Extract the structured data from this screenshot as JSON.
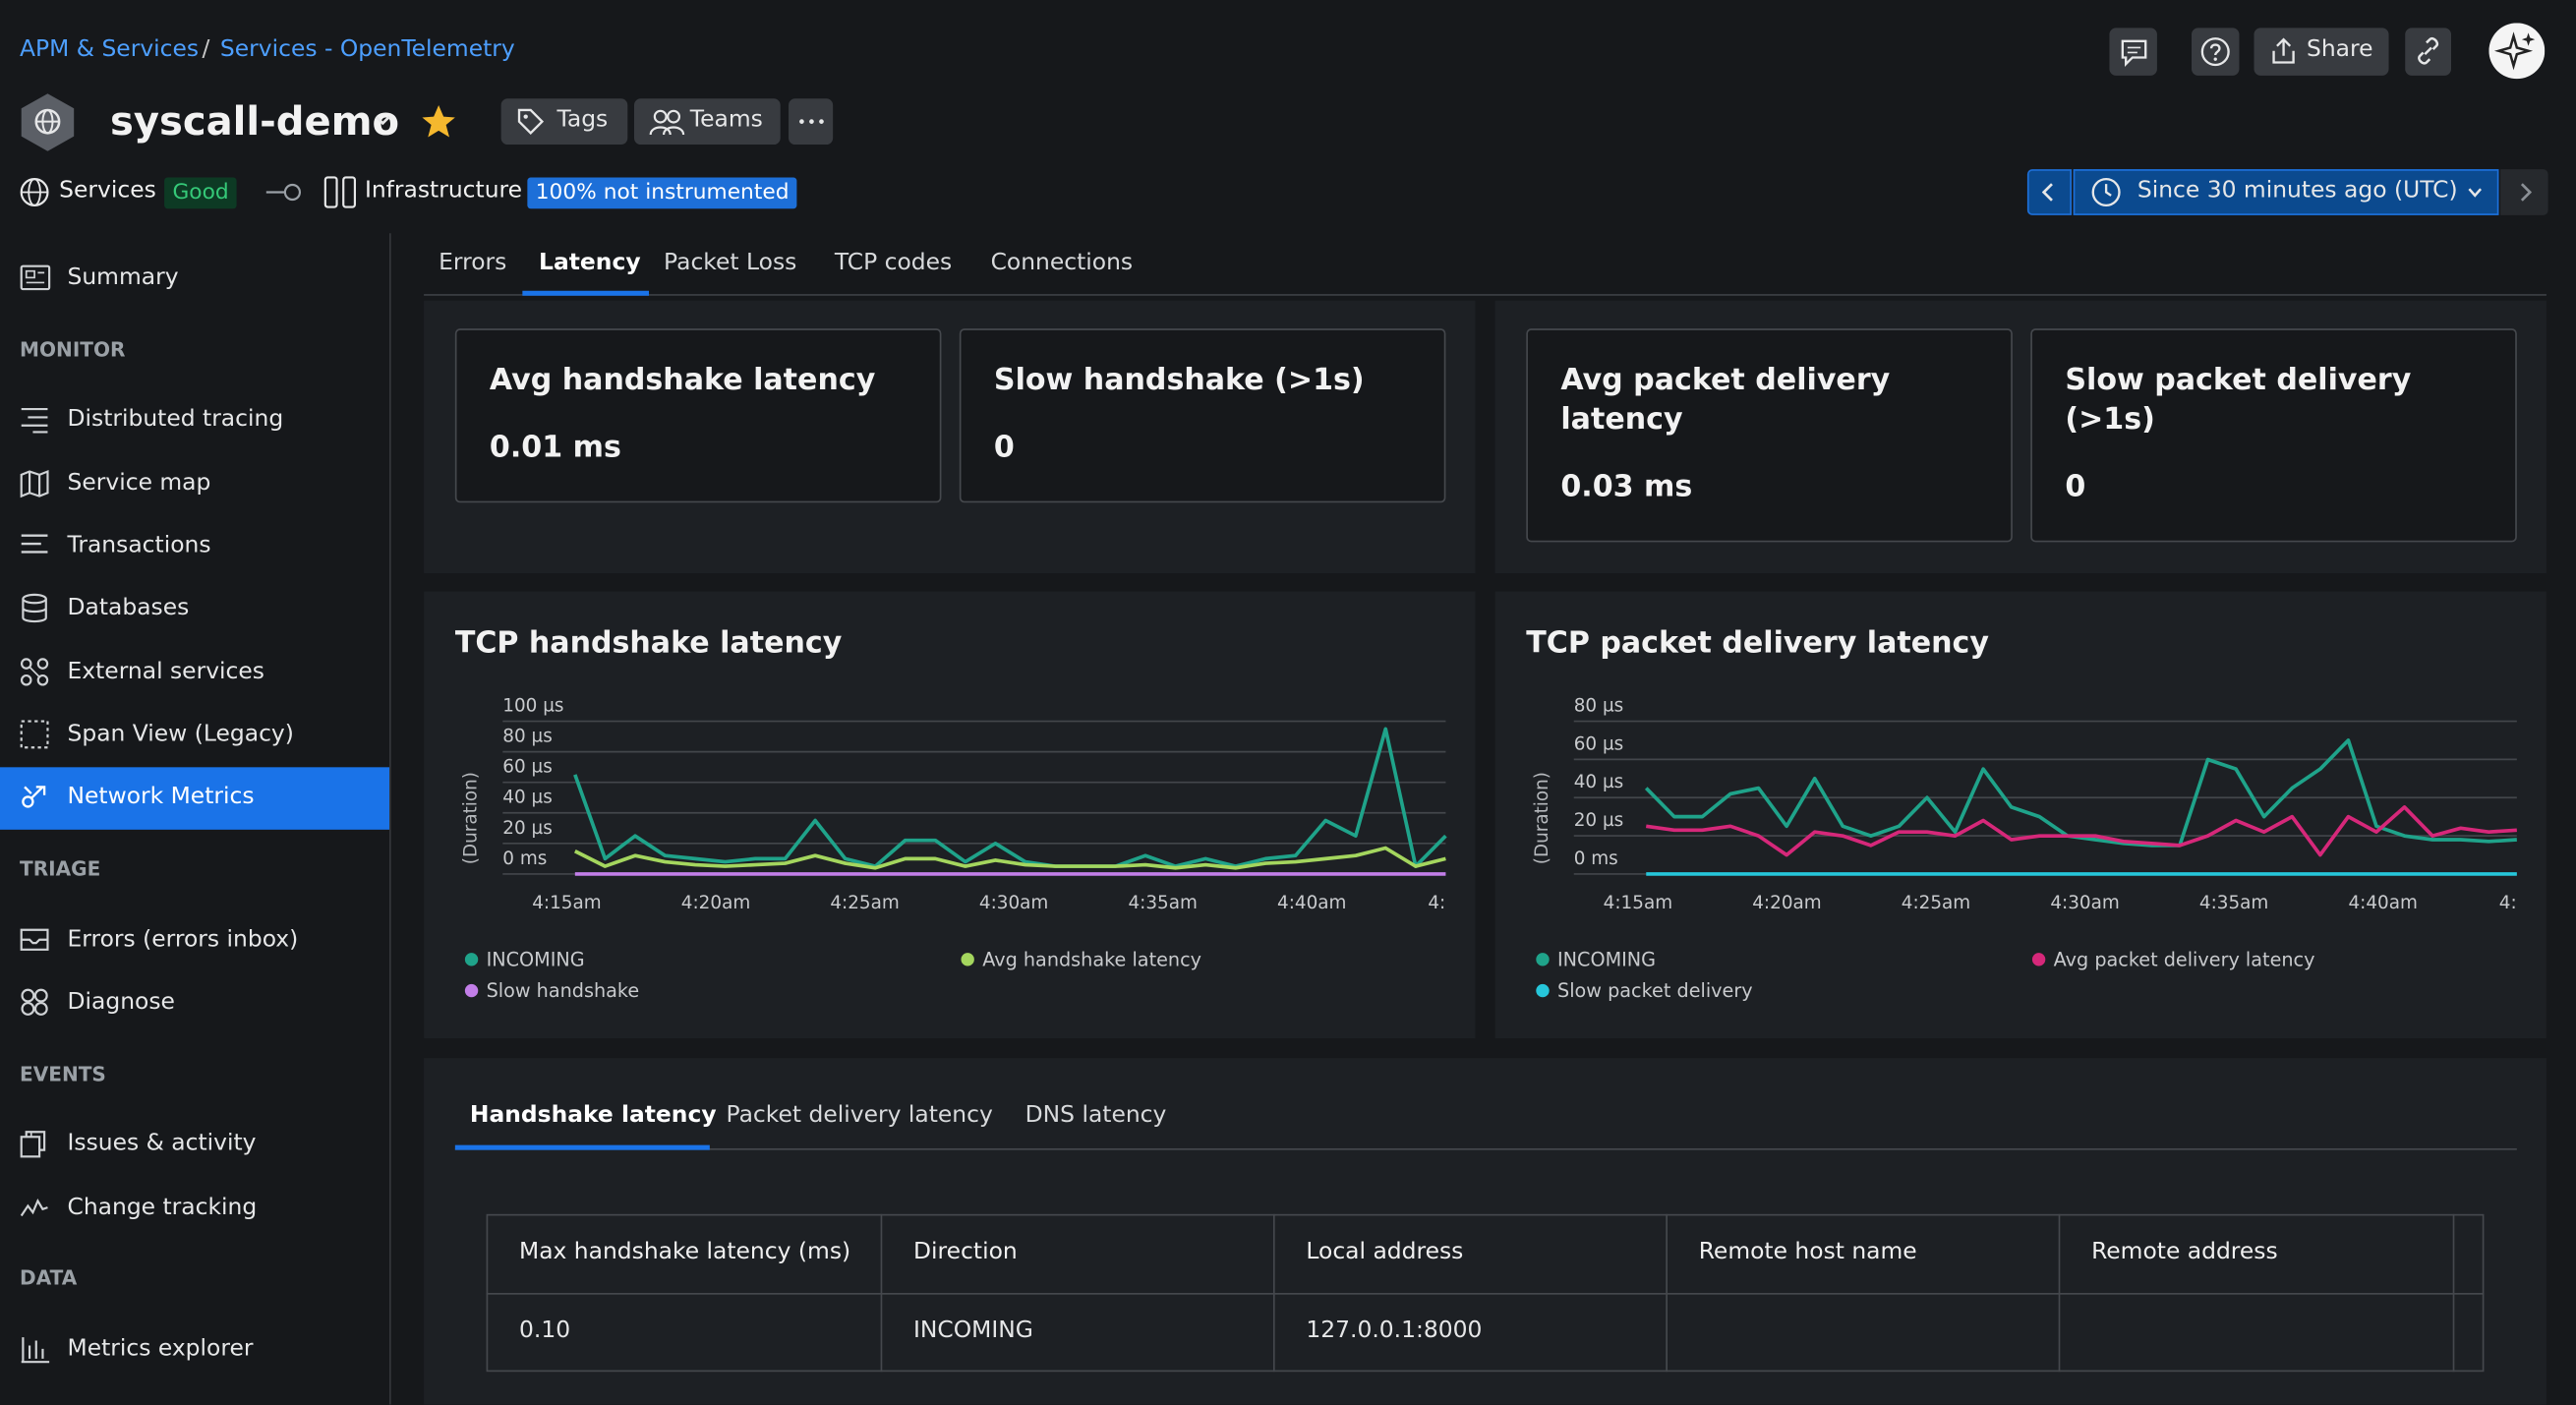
{
  "header": {
    "breadcrumbs": [
      "APM & Services",
      "Services - OpenTelemetry"
    ],
    "breadcrumb_separator": "/",
    "entity_name": "syscall-demo",
    "buttons": [
      "Tags",
      "Teams"
    ],
    "share": "Share",
    "status": {
      "services": "Services",
      "services_state": "Good",
      "infrastructure": "Infrastructure",
      "infrastructure_state": "100% not instrumented"
    },
    "time_picker": "Since 30 minutes ago (UTC)"
  },
  "sidebar": [
    {
      "label": "Summary"
    },
    {
      "heading": "MONITOR"
    },
    {
      "label": "Distributed tracing"
    },
    {
      "label": "Service map"
    },
    {
      "label": "Transactions"
    },
    {
      "label": "Databases"
    },
    {
      "label": "External services"
    },
    {
      "label": "Span View (Legacy)"
    },
    {
      "label": "Network Metrics",
      "active": true
    },
    {
      "heading": "TRIAGE"
    },
    {
      "label": "Errors (errors inbox)"
    },
    {
      "label": "Diagnose"
    },
    {
      "heading": "EVENTS"
    },
    {
      "label": "Issues & activity"
    },
    {
      "label": "Change tracking"
    },
    {
      "heading": "DATA"
    },
    {
      "label": "Metrics explorer"
    }
  ],
  "tabs": {
    "items": [
      "Errors",
      "Latency",
      "Packet Loss",
      "TCP codes",
      "Connections"
    ],
    "active": 1
  },
  "kpis": [
    {
      "title": "Avg handshake latency",
      "value": "0.01 ms"
    },
    {
      "title": "Slow handshake (>1s)",
      "value": "0"
    },
    {
      "title": "Avg packet delivery latency",
      "value": "0.03 ms"
    },
    {
      "title": "Slow packet delivery (>1s)",
      "value": "0"
    }
  ],
  "chart_data": [
    {
      "type": "line",
      "title": "TCP handshake latency",
      "y_label": "(Duration)",
      "x_labels": [
        "4:15am",
        "4:20am",
        "4:25am",
        "4:30am",
        "4:35am",
        "4:40am",
        "4:"
      ],
      "ylim": [
        0,
        100
      ],
      "yticks": [
        {
          "value": 0,
          "label": "0 ms"
        },
        {
          "value": 20,
          "label": "20 µs"
        },
        {
          "value": 40,
          "label": "40 µs"
        },
        {
          "value": 60,
          "label": "60 µs"
        },
        {
          "value": 80,
          "label": "80 µs"
        },
        {
          "value": 100,
          "label": "100 µs"
        }
      ],
      "grid": true,
      "series": [
        {
          "name": "INCOMING",
          "color": "#1fa38a",
          "values": [
            65,
            10,
            25,
            12,
            10,
            8,
            10,
            10,
            35,
            10,
            5,
            22,
            22,
            8,
            20,
            8,
            5,
            5,
            5,
            12,
            5,
            10,
            5,
            10,
            12,
            35,
            25,
            95,
            5,
            25
          ]
        },
        {
          "name": "Avg handshake latency",
          "color": "#a4d65e",
          "values": [
            15,
            5,
            12,
            8,
            6,
            5,
            6,
            7,
            12,
            7,
            4,
            10,
            10,
            5,
            9,
            6,
            5,
            5,
            5,
            6,
            4,
            6,
            4,
            7,
            8,
            10,
            12,
            17,
            5,
            10
          ]
        },
        {
          "name": "Slow handshake",
          "color": "#c27ee8",
          "values": [
            0,
            0,
            0,
            0,
            0,
            0,
            0,
            0,
            0,
            0,
            0,
            0,
            0,
            0,
            0,
            0,
            0,
            0,
            0,
            0,
            0,
            0,
            0,
            0,
            0,
            0,
            0,
            0,
            0,
            0
          ]
        }
      ]
    },
    {
      "type": "line",
      "title": "TCP packet delivery latency",
      "y_label": "(Duration)",
      "x_labels": [
        "4:15am",
        "4:20am",
        "4:25am",
        "4:30am",
        "4:35am",
        "4:40am",
        "4:"
      ],
      "ylim": [
        0,
        80
      ],
      "yticks": [
        {
          "value": 0,
          "label": "0 ms"
        },
        {
          "value": 20,
          "label": "20 µs"
        },
        {
          "value": 40,
          "label": "40 µs"
        },
        {
          "value": 60,
          "label": "60 µs"
        },
        {
          "value": 80,
          "label": "80 µs"
        }
      ],
      "grid": true,
      "series": [
        {
          "name": "INCOMING",
          "color": "#1fa38a",
          "values": [
            45,
            30,
            30,
            42,
            45,
            25,
            50,
            25,
            20,
            25,
            40,
            22,
            55,
            35,
            30,
            20,
            18,
            16,
            15,
            15,
            60,
            55,
            30,
            45,
            55,
            70,
            25,
            20,
            18,
            18,
            17,
            18
          ]
        },
        {
          "name": "Avg packet delivery latency",
          "color": "#d6287a",
          "values": [
            25,
            23,
            23,
            25,
            20,
            10,
            22,
            20,
            15,
            22,
            22,
            20,
            28,
            18,
            20,
            20,
            20,
            17,
            16,
            15,
            20,
            28,
            22,
            30,
            10,
            30,
            22,
            35,
            20,
            24,
            22,
            23
          ]
        },
        {
          "name": "Slow packet delivery",
          "color": "#26c6da",
          "values": [
            0,
            0,
            0,
            0,
            0,
            0,
            0,
            0,
            0,
            0,
            0,
            0,
            0,
            0,
            0,
            0,
            0,
            0,
            0,
            0,
            0,
            0,
            0,
            0,
            0,
            0,
            0,
            0,
            0,
            0,
            0,
            0
          ]
        }
      ]
    }
  ],
  "detail_tabs": {
    "items": [
      "Handshake latency",
      "Packet delivery latency",
      "DNS latency"
    ],
    "active": 0
  },
  "table": {
    "headers": [
      "Max handshake latency (ms)",
      "Direction",
      "Local address",
      "Remote host name",
      "Remote address"
    ],
    "rows": [
      [
        "0.10",
        "INCOMING",
        "127.0.0.1:8000"
      ]
    ]
  }
}
